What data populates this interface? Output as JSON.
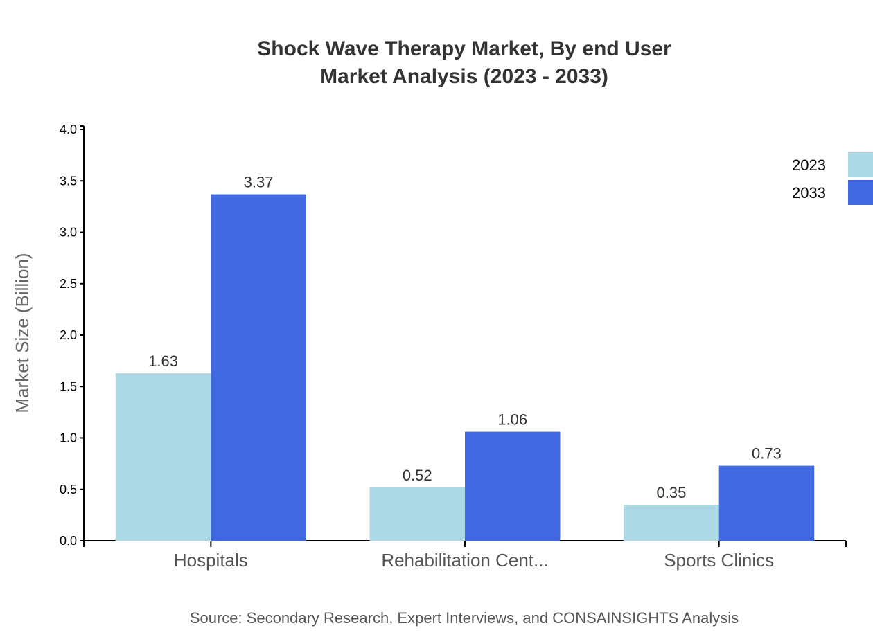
{
  "chart_data": {
    "type": "bar",
    "title": "Shock Wave Therapy Market, By end User",
    "subtitle": "Market Analysis (2023 - 2033)",
    "xlabel": "",
    "ylabel": "Market Size (Billion)",
    "ylim": [
      0,
      4.0
    ],
    "yticks": [
      "0.0",
      "0.5",
      "1.0",
      "1.5",
      "2.0",
      "2.5",
      "3.0",
      "3.5",
      "4.0"
    ],
    "categories": [
      "Hospitals",
      "Rehabilitation Cent...",
      "Sports Clinics"
    ],
    "series": [
      {
        "name": "2023",
        "color": "#add8e6",
        "values": [
          1.63,
          0.52,
          0.35
        ],
        "labels": [
          "1.63",
          "0.52",
          "0.35"
        ]
      },
      {
        "name": "2033",
        "color": "#4169e1",
        "values": [
          3.37,
          1.06,
          0.73
        ],
        "labels": [
          "3.37",
          "1.06",
          "0.73"
        ]
      }
    ],
    "grid": false,
    "legend": "top-right",
    "source": "Source: Secondary Research, Expert Interviews, and CONSAINSIGHTS Analysis"
  }
}
